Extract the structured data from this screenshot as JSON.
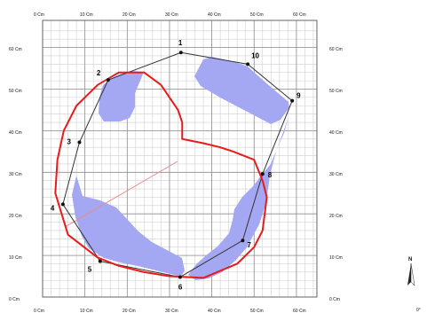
{
  "x_ticks": [
    "0 Cm",
    "10 Cm",
    "20 Cm",
    "30 Cm",
    "40 Cm",
    "50 Cm",
    "60 Cm"
  ],
  "y_ticks": [
    "0 Cm",
    "10 Cm",
    "20 Cm",
    "30 Cm",
    "40 Cm",
    "50 Cm",
    "60 Cm"
  ],
  "polygon": {
    "color": "#333333",
    "vertices": [
      {
        "label": "1",
        "x": 32.7,
        "y": 58.8
      },
      {
        "label": "10",
        "x": 48.5,
        "y": 56.0
      },
      {
        "label": "9",
        "x": 59.0,
        "y": 47.2
      },
      {
        "label": "8",
        "x": 52.0,
        "y": 29.6
      },
      {
        "label": "7",
        "x": 47.3,
        "y": 13.6
      },
      {
        "label": "6",
        "x": 32.5,
        "y": 4.8
      },
      {
        "label": "5",
        "x": 13.6,
        "y": 8.6
      },
      {
        "label": "4",
        "x": 4.8,
        "y": 22.3
      },
      {
        "label": "3",
        "x": 8.7,
        "y": 37.2
      },
      {
        "label": "2",
        "x": 15.5,
        "y": 52.2
      }
    ]
  },
  "red_outline": {
    "color": "#e81b1b",
    "points": [
      [
        28,
        51
      ],
      [
        30,
        48
      ],
      [
        32,
        45
      ],
      [
        33,
        42
      ],
      [
        33,
        38
      ],
      [
        35.5,
        37.5
      ],
      [
        38,
        37
      ],
      [
        42,
        36
      ],
      [
        45,
        35
      ],
      [
        50,
        33
      ],
      [
        52,
        28
      ],
      [
        53,
        24
      ],
      [
        52,
        16
      ],
      [
        50,
        12
      ],
      [
        46,
        8
      ],
      [
        38,
        4.6
      ],
      [
        30,
        5
      ],
      [
        24,
        6
      ],
      [
        18,
        7.5
      ],
      [
        13,
        9.5
      ],
      [
        6,
        15
      ],
      [
        3,
        25
      ],
      [
        3.5,
        33
      ],
      [
        5,
        40
      ],
      [
        8,
        46
      ],
      [
        13,
        51
      ],
      [
        18,
        54
      ],
      [
        24,
        54
      ]
    ]
  },
  "fill_color": "#a4a8f2",
  "compass": {
    "letter": "N",
    "degree": "0°"
  }
}
